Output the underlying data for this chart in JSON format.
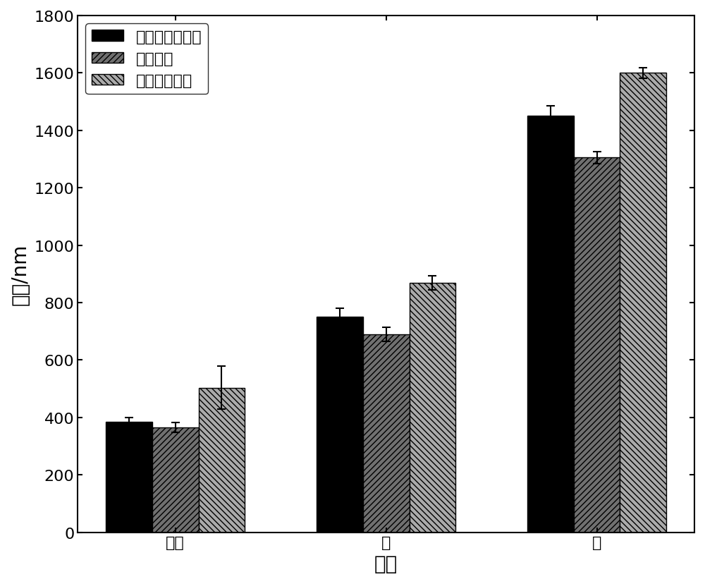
{
  "categories": [
    "初始",
    "胃",
    "肠"
  ],
  "series": [
    {
      "label": "母乳脂质替代品",
      "values": [
        385,
        750,
        1450
      ],
      "errors": [
        15,
        30,
        35
      ],
      "color": "#000000",
      "hatch": ""
    },
    {
      "label": "物理混合",
      "values": [
        365,
        690,
        1305
      ],
      "errors": [
        18,
        25,
        20
      ],
      "color": "#707070",
      "hatch": "////"
    },
    {
      "label": "巴沙鱼油硬脂",
      "values": [
        503,
        868,
        1600
      ],
      "errors": [
        75,
        25,
        18
      ],
      "color": "#aaaaaa",
      "hatch": "\\\\\\\\"
    }
  ],
  "xlabel": "阶段",
  "ylabel": "粒径/nm",
  "ylim": [
    0,
    1800
  ],
  "yticks": [
    0,
    200,
    400,
    600,
    800,
    1000,
    1200,
    1400,
    1600,
    1800
  ],
  "bar_width": 0.22,
  "legend_loc": "upper left",
  "xlabel_fontsize": 20,
  "ylabel_fontsize": 20,
  "tick_fontsize": 16,
  "legend_fontsize": 16,
  "figsize": [
    10.0,
    8.29
  ],
  "dpi": 100
}
